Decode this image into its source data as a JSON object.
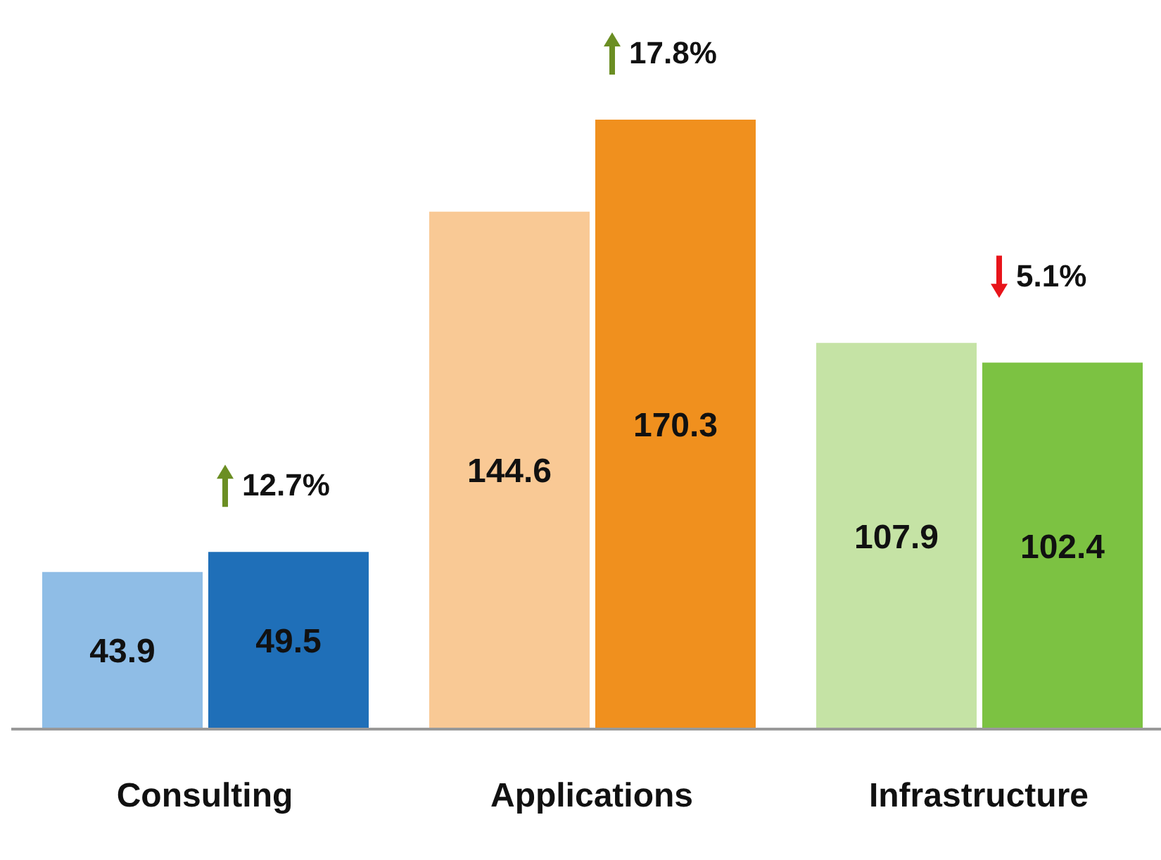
{
  "chart_data": {
    "type": "bar",
    "categories": [
      "Consulting",
      "Applications",
      "Infrastructure"
    ],
    "series": [
      {
        "colors": [
          "#8fbde6",
          "#f9c995",
          "#c5e3a5"
        ],
        "values": [
          43.9,
          144.6,
          107.9
        ]
      },
      {
        "colors": [
          "#1f6fb8",
          "#f0901e",
          "#7cc242"
        ],
        "values": [
          49.5,
          170.3,
          102.4
        ]
      }
    ],
    "data_labels": true,
    "grid": false,
    "legend": false,
    "annotations": [
      {
        "text": "12.7%",
        "x": "Consulting",
        "y": 49.5
      },
      {
        "text": "17.8%",
        "x": "Applications",
        "y": 170.3
      },
      {
        "text": "5.1%",
        "x": "Infrastructure",
        "y": 107.9
      }
    ]
  }
}
